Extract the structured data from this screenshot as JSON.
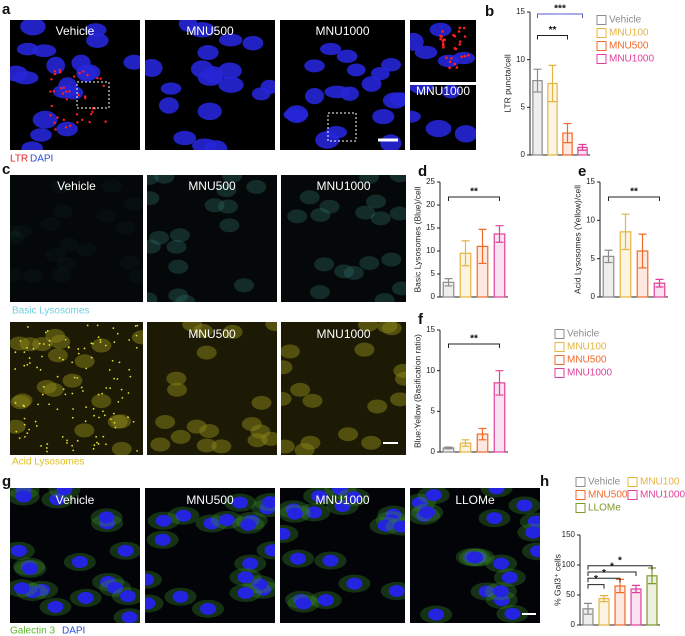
{
  "images": [
    {
      "letter": "a",
      "labels": [
        "Vehicle",
        "MNU500",
        "MNU1000"
      ],
      "inset_label": "MNU1000",
      "stain": [
        "LTR",
        "DAPI"
      ]
    },
    {
      "letter": "c",
      "labels": [
        "Vehicle",
        "MNU500",
        "MNU1000"
      ],
      "caption": "Basic Lysosomes"
    },
    {
      "labels": [
        "MNU500",
        "MNU1000"
      ],
      "caption": "Acid Lysosomes"
    },
    {
      "letter": "g",
      "labels": [
        "Vehicle",
        "MNU500",
        "MNU1000",
        "LLOMe"
      ],
      "stain": [
        "Galectin 3",
        "DAPI"
      ]
    }
  ],
  "chart_data": [
    {
      "type": "bar",
      "panel": "b",
      "ylabel": "LTR puncta/cell",
      "categories": [
        "Vehicle",
        "MNU100",
        "MNU500",
        "MNU1000"
      ],
      "values": [
        7.8,
        7.5,
        2.3,
        0.8
      ],
      "errors": [
        1.2,
        1.9,
        1.0,
        0.3
      ],
      "colors": [
        "#8c8c8c",
        "#e6b441",
        "#f06a2a",
        "#e0409a"
      ],
      "ylim": [
        0,
        15
      ],
      "yticks": [
        0,
        5,
        10,
        15
      ],
      "annotations": [
        "**",
        "***"
      ],
      "legend": true
    },
    {
      "type": "bar",
      "panel": "d",
      "ylabel": "Basic Lysosomes (Blue)/cell",
      "categories": [
        "Vehicle",
        "MNU100",
        "MNU500",
        "MNU1000"
      ],
      "values": [
        3.2,
        9.5,
        11,
        13.7
      ],
      "errors": [
        0.8,
        2.7,
        3.7,
        1.8
      ],
      "colors": [
        "#8c8c8c",
        "#e6b441",
        "#f06a2a",
        "#e0409a"
      ],
      "ylim": [
        0,
        25
      ],
      "yticks": [
        0,
        5,
        10,
        15,
        20,
        25
      ],
      "annotations": [
        "**"
      ],
      "legend": false
    },
    {
      "type": "bar",
      "panel": "e",
      "ylabel": "Acid Lysosomes (Yellow)/cell",
      "categories": [
        "Vehicle",
        "MNU100",
        "MNU500",
        "MNU1000"
      ],
      "values": [
        5.3,
        8.5,
        6,
        1.8
      ],
      "errors": [
        0.8,
        2.3,
        2.2,
        0.5
      ],
      "colors": [
        "#8c8c8c",
        "#e6b441",
        "#f06a2a",
        "#e0409a"
      ],
      "ylim": [
        0,
        15
      ],
      "yticks": [
        0,
        5,
        10,
        15
      ],
      "annotations": [
        "**"
      ],
      "legend": false
    },
    {
      "type": "bar",
      "panel": "f",
      "ylabel": "Blue:Yellow (Basification ratio)",
      "categories": [
        "Vehicle",
        "MNU100",
        "MNU500",
        "MNU1000"
      ],
      "values": [
        0.5,
        1.1,
        2.2,
        8.5
      ],
      "errors": [
        0.1,
        0.4,
        0.7,
        1.5
      ],
      "colors": [
        "#8c8c8c",
        "#e6b441",
        "#f06a2a",
        "#e0409a"
      ],
      "ylim": [
        0,
        15
      ],
      "yticks": [
        0,
        5,
        10,
        15
      ],
      "annotations": [
        "**"
      ],
      "legend": true
    },
    {
      "type": "bar",
      "panel": "h",
      "ylabel": "% Gal3⁺ cells",
      "categories": [
        "Vehicle",
        "MNU100",
        "MNU500",
        "MNU1000",
        "LLOMe"
      ],
      "values": [
        27,
        44,
        65,
        60,
        82
      ],
      "errors": [
        9,
        5,
        11,
        6,
        13
      ],
      "colors": [
        "#8c8c8c",
        "#e6b441",
        "#f06a2a",
        "#e0409a",
        "#7f9a2a"
      ],
      "ylim": [
        0,
        150
      ],
      "yticks": [
        0,
        50,
        100,
        150
      ],
      "annotations": [
        "*",
        "*",
        "*",
        "*"
      ],
      "legend": true
    }
  ]
}
